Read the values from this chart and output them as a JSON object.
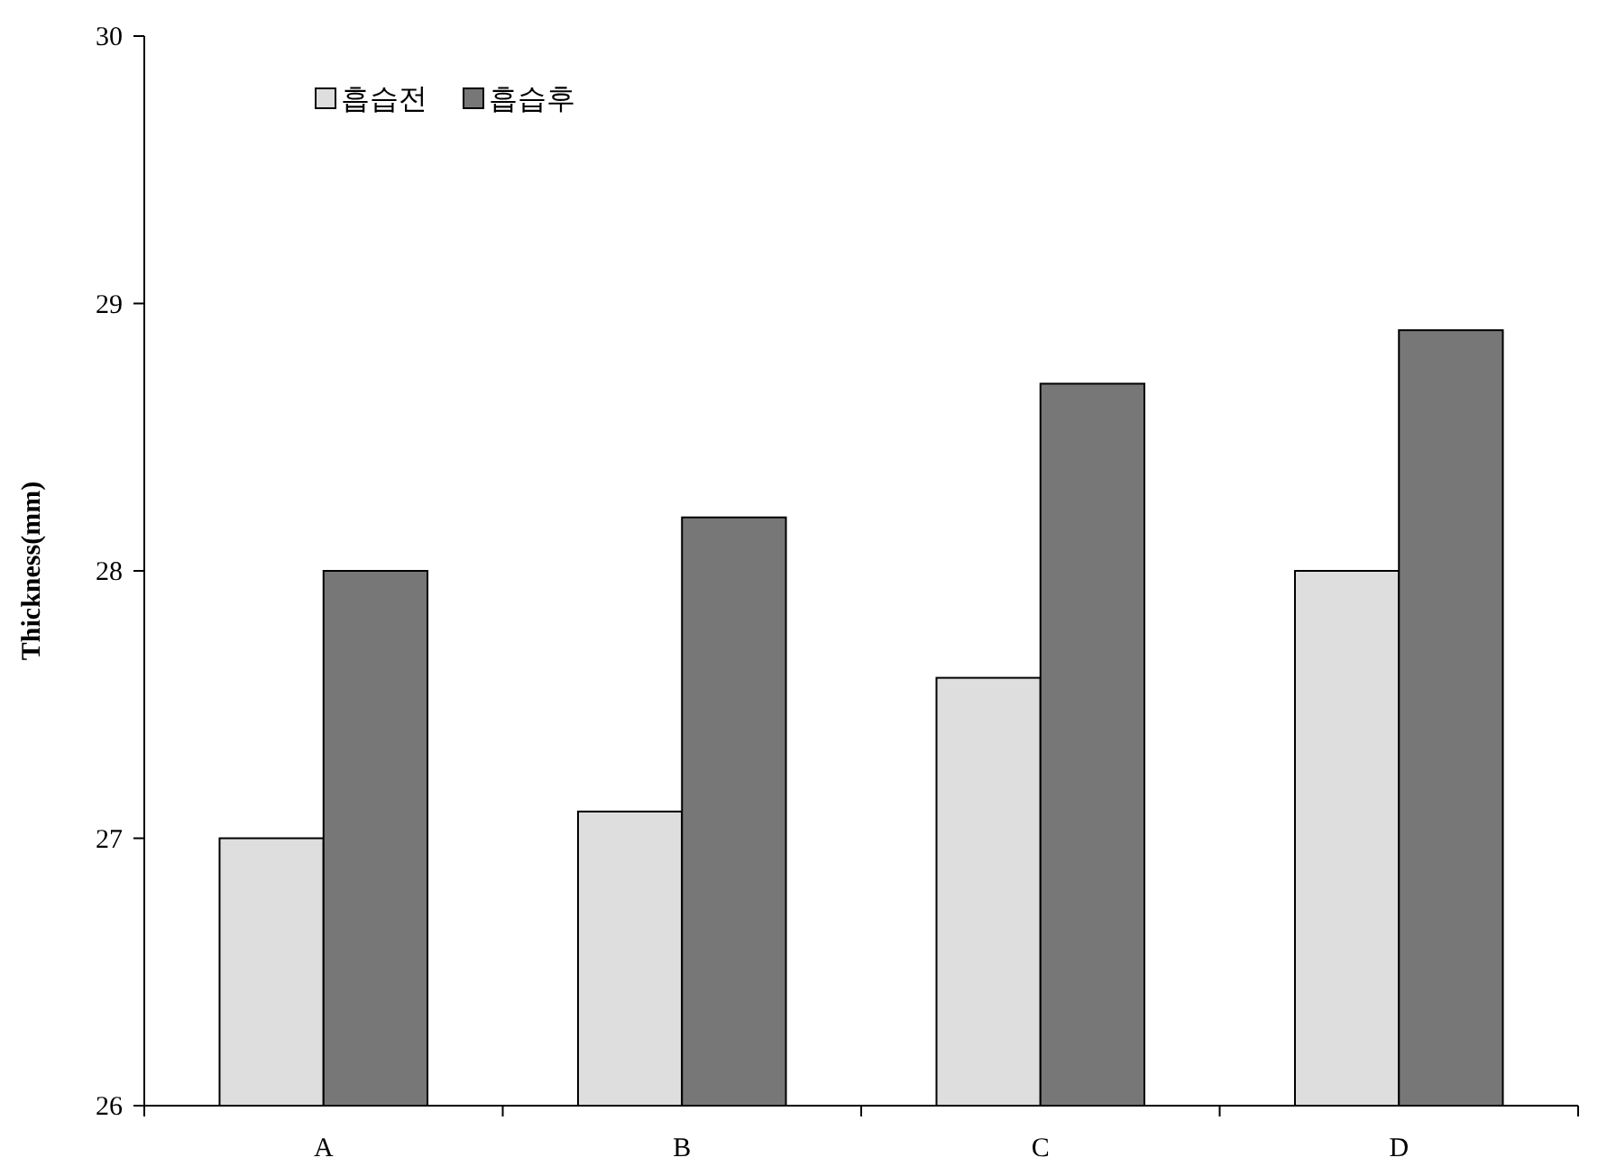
{
  "chart_data": {
    "type": "bar",
    "ylabel": "Thickness(mm)",
    "categories": [
      "A",
      "B",
      "C",
      "D"
    ],
    "series": [
      {
        "name": "흡습전",
        "color": "#dedede",
        "values": [
          27.0,
          27.1,
          27.6,
          28.0
        ]
      },
      {
        "name": "흡습후",
        "color": "#777777",
        "values": [
          28.0,
          28.2,
          28.7,
          28.9
        ]
      }
    ],
    "ylim": [
      26,
      30
    ],
    "yticks": [
      26,
      27,
      28,
      29,
      30
    ],
    "legend": "top left",
    "grid": false
  }
}
